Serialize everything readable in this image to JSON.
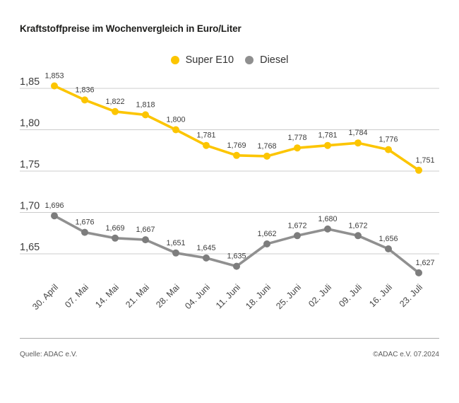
{
  "title": "Kraftstoffpreise im Wochenvergleich in Euro/Liter",
  "legend": {
    "items": [
      {
        "id": "super-e10",
        "label": "Super E10",
        "color": "#fcc500"
      },
      {
        "id": "diesel",
        "label": "Diesel",
        "color": "#8f8f8f"
      }
    ]
  },
  "footer": {
    "source_left": "Quelle: ADAC e.V.",
    "copyright_right": "©ADAC e.V. 07.2024"
  },
  "chart_data": {
    "type": "line",
    "title": "Kraftstoffpreise im Wochenvergleich in Euro/Liter",
    "xlabel": "",
    "ylabel": "Euro/Liter",
    "ylim": [
      1.65,
      1.85
    ],
    "grid": true,
    "legend_position": "top-center",
    "categories": [
      "30. April",
      "07. Mai",
      "14. Mai",
      "21. Mai",
      "28. Mai",
      "04. Juni",
      "11. Juni",
      "18. Juni",
      "25. Juni",
      "02. Juli",
      "09. Juli",
      "16. Juli",
      "23. Juli"
    ],
    "y_axis": {
      "ticks": [
        {
          "value": 1.85,
          "label": "1,85"
        },
        {
          "value": 1.8,
          "label": "1,80"
        },
        {
          "value": 1.75,
          "label": "1,75"
        },
        {
          "value": 1.7,
          "label": "1,70"
        },
        {
          "value": 1.65,
          "label": "1,65"
        }
      ]
    },
    "series": [
      {
        "id": "super-e10",
        "name": "Super E10",
        "color": "#fcc500",
        "point_color": "#fcc500",
        "values": [
          1.853,
          1.836,
          1.822,
          1.818,
          1.8,
          1.781,
          1.769,
          1.768,
          1.778,
          1.781,
          1.784,
          1.776,
          1.751
        ],
        "labels": [
          "1,853",
          "1,836",
          "1,822",
          "1,818",
          "1,800",
          "1,781",
          "1,769",
          "1,768",
          "1,778",
          "1,781",
          "1,784",
          "1,776",
          "1,751"
        ]
      },
      {
        "id": "diesel",
        "name": "Diesel",
        "color": "#909090",
        "point_color": "#7d7d7d",
        "values": [
          1.696,
          1.676,
          1.669,
          1.667,
          1.651,
          1.645,
          1.635,
          1.662,
          1.672,
          1.68,
          1.672,
          1.656,
          1.627
        ],
        "labels": [
          "1,696",
          "1,676",
          "1,669",
          "1,667",
          "1,651",
          "1,645",
          "1,635",
          "1,662",
          "1,672",
          "1,680",
          "1,672",
          "1,656",
          "1,627"
        ]
      }
    ]
  }
}
